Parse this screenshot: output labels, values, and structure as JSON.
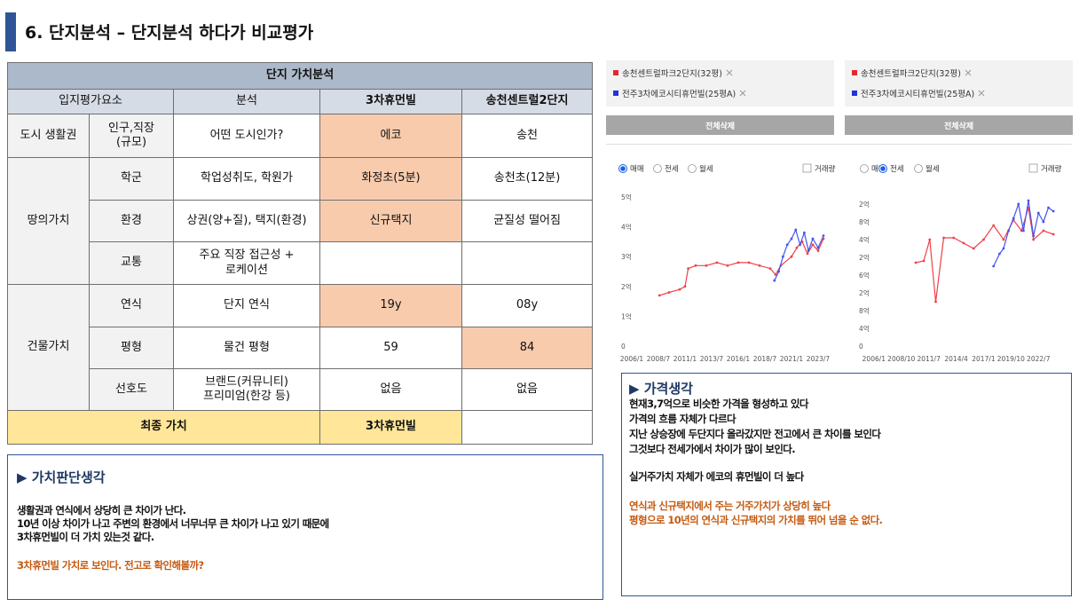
{
  "header": {
    "title": "6. 단지분석 – 단지분석 하다가 비교평가"
  },
  "table": {
    "title": "단지 가치분석",
    "columns": [
      "입지평가요소",
      "분석",
      "3차휴먼빌",
      "송천센트럴2단지"
    ],
    "rows": [
      {
        "group": "도시 생활권",
        "label": "인구,직장\n(규모)",
        "analysis": "어떤 도시인가?",
        "a": "에코",
        "b": "송천"
      },
      {
        "group": "땅의가치",
        "label": "학군",
        "analysis": "학업성취도, 학원가",
        "a": "화정초(5분)",
        "b": "송천초(12분)"
      },
      {
        "label": "환경",
        "analysis": "상권(양+질), 택지(환경)",
        "a": "신규택지",
        "b": "균질성 떨어짐"
      },
      {
        "label": "교통",
        "analysis": "주요 직장 접근성 +\n로케이션"
      },
      {
        "group": "건물가치",
        "label": "연식",
        "analysis": "단지 연식",
        "a": "19y",
        "b": "08y"
      },
      {
        "label": "평형",
        "analysis": "물건 평형",
        "a": "59",
        "b": "84"
      },
      {
        "label": "선호도",
        "analysis": "브랜드(커뮤니티)\n프리미엄(한강 등)",
        "a": "없음",
        "b": "없음"
      }
    ],
    "final": {
      "label": "최종 가치",
      "a": "3차휴먼빌"
    }
  },
  "left_note": {
    "title": "▶ 가치판단생각",
    "lines": [
      "생활권과 연식에서 상당히 큰 차이가 난다.",
      "10년 이상 차이가 나고 주변의 환경에서 너무너무 큰 차이가 나고 있기 때문에",
      "3차휴먼빌이 더 가치 있는것 같다."
    ],
    "highlight": [
      "3차휴먼빌 가치로 보인다. 전고로 확인해볼까?"
    ]
  },
  "right_note": {
    "title": "▶ 가격생각",
    "lines": [
      "현재3,7억으로 비슷한 가격을 형성하고 있다",
      "가격의 흐름 자체가 다르다",
      "지난 상승장에 두단지다 올라갔지만 전고에서 큰 차이를 보인다",
      "그것보다 전세가에서 차이가 많이 보인다."
    ],
    "lines2": [
      "실거주가치 자체가 에코의 휴먼빌이 더 높다"
    ],
    "highlight": [
      "연식과 신규택지에서 주는 거주가치가 상당히 높다",
      "평형으로 10년의 연식과 신규택지의 가치를 뛰어 넘을 순 없다."
    ]
  },
  "filters": [
    {
      "items": [
        {
          "name": "송천센트럴파크2단지(32평)",
          "color": "#e8262b"
        },
        {
          "name": "전주3차에코시티휴먼빌(25평A)",
          "color": "#2233dd"
        }
      ],
      "button": "전체삭제"
    },
    {
      "items": [
        {
          "name": "송천센트럴파크2단지(32평)",
          "color": "#e8262b"
        },
        {
          "name": "전주3차에코시티휴먼빌(25평A)",
          "color": "#2233dd"
        }
      ],
      "button": "전체삭제"
    }
  ],
  "charts": [
    {
      "type": "line",
      "options": [
        "매매",
        "전세",
        "월세"
      ],
      "selected": 0,
      "volume_label": "거래량",
      "xlim": [
        2005,
        2025
      ],
      "xticks": [
        {
          "value": 2006.0,
          "label": "2006/1"
        },
        {
          "value": 2008.5,
          "label": "2008/7"
        },
        {
          "value": 2011.0,
          "label": "2011/1"
        },
        {
          "value": 2013.5,
          "label": "2013/7"
        },
        {
          "value": 2016.0,
          "label": "2016/1"
        },
        {
          "value": 2018.5,
          "label": "2018/7"
        },
        {
          "value": 2021.0,
          "label": "2021/1"
        },
        {
          "value": 2023.5,
          "label": "2023/7"
        }
      ],
      "ylim": [
        0,
        5
      ],
      "yticks": [
        0,
        {
          "value": 1,
          "label": "1억"
        },
        {
          "value": 2,
          "label": "2억"
        },
        {
          "value": 3,
          "label": "3억"
        },
        {
          "value": 4,
          "label": "4억"
        },
        {
          "value": 5,
          "label": "5억"
        }
      ],
      "series": [
        {
          "color": "#f0404a",
          "x": [
            2008.6,
            2009.5,
            2010.5,
            2011.0,
            2011.3,
            2012,
            2013,
            2014,
            2015,
            2016,
            2017,
            2018,
            2019,
            2019.5,
            2020,
            2021,
            2021.5,
            2022,
            2022.5,
            2023,
            2023.5,
            2024
          ],
          "values": [
            1.7,
            1.8,
            1.9,
            2.0,
            2.6,
            2.7,
            2.7,
            2.8,
            2.7,
            2.8,
            2.8,
            2.7,
            2.6,
            2.4,
            2.7,
            3.0,
            3.3,
            3.5,
            3.1,
            3.4,
            3.2,
            3.6
          ]
        },
        {
          "color": "#4455ee",
          "x": [
            2019.4,
            2019.8,
            2020.2,
            2020.6,
            2021,
            2021.4,
            2021.8,
            2022.2,
            2022.6,
            2023,
            2023.5,
            2024
          ],
          "values": [
            2.2,
            2.5,
            3.0,
            3.4,
            3.6,
            3.9,
            3.4,
            3.8,
            3.2,
            3.6,
            3.3,
            3.7
          ]
        }
      ]
    },
    {
      "type": "line",
      "options": [
        "매매",
        "전세",
        "월세"
      ],
      "selected": 1,
      "volume_label": "거래량",
      "xlim": [
        2004.5,
        2025.5
      ],
      "xticks": [
        {
          "value": 2006.0,
          "label": "2006/1"
        },
        {
          "value": 2008.75,
          "label": "2008/10"
        },
        {
          "value": 2011.5,
          "label": "2011/7"
        },
        {
          "value": 2014.25,
          "label": "2014/4"
        },
        {
          "value": 2017.0,
          "label": "2017/1"
        },
        {
          "value": 2019.75,
          "label": "2019/10"
        },
        {
          "value": 2022.5,
          "label": "2022/7"
        }
      ],
      "ylim": [
        0,
        8.5
      ],
      "yticks": [
        0,
        {
          "value": 1,
          "label": "4억"
        },
        {
          "value": 2,
          "label": "8억"
        },
        {
          "value": 3,
          "label": "2억"
        },
        {
          "value": 4,
          "label": "6억"
        },
        {
          "value": 5,
          "label": "2억"
        },
        {
          "value": 6,
          "label": "4억"
        },
        {
          "value": 7,
          "label": "8억"
        },
        {
          "value": 8,
          "label": "2억"
        }
      ],
      "series": [
        {
          "color": "#f0404a",
          "x": [
            2010.2,
            2011,
            2011.6,
            2012.2,
            2013,
            2014,
            2015,
            2016,
            2017,
            2018,
            2019,
            2020,
            2020.8,
            2021.5,
            2022,
            2023,
            2024
          ],
          "values": [
            4.7,
            4.8,
            6.0,
            2.5,
            6.1,
            6.1,
            5.8,
            5.5,
            6.0,
            6.8,
            6.0,
            7.1,
            6.5,
            7.8,
            6.0,
            6.5,
            6.3
          ]
        },
        {
          "color": "#4455ee",
          "x": [
            2018,
            2018.6,
            2019,
            2019.5,
            2020,
            2020.5,
            2021,
            2021.5,
            2022,
            2022.5,
            2023,
            2023.5,
            2024
          ],
          "values": [
            4.5,
            5.2,
            5.5,
            6.5,
            7.2,
            8.0,
            6.5,
            8.2,
            6.2,
            7.5,
            7.0,
            7.8,
            7.6
          ]
        }
      ]
    }
  ]
}
